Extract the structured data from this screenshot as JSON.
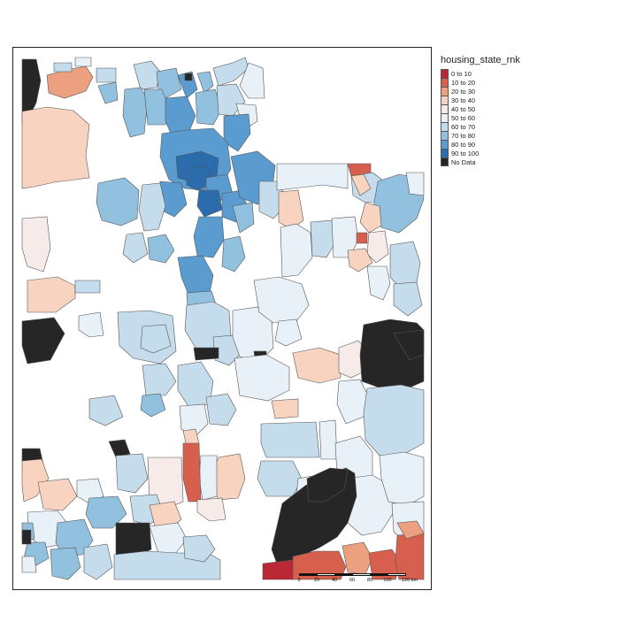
{
  "legend": {
    "title": "housing_state_rnk",
    "items": [
      {
        "label": "0 to 10",
        "color": "#ba2735"
      },
      {
        "label": "10 to 20",
        "color": "#d6604d"
      },
      {
        "label": "20 to 30",
        "color": "#eda080"
      },
      {
        "label": "30 to 40",
        "color": "#f8d4c0"
      },
      {
        "label": "40 to 50",
        "color": "#f6ebe8"
      },
      {
        "label": "50 to 60",
        "color": "#e8f1f7"
      },
      {
        "label": "60 to 70",
        "color": "#c5dcec"
      },
      {
        "label": "70 to 80",
        "color": "#92c0df"
      },
      {
        "label": "80 to 90",
        "color": "#5a9bd0"
      },
      {
        "label": "90 to 100",
        "color": "#2b6cad"
      },
      {
        "label": "No Data",
        "color": "#262626"
      }
    ]
  },
  "scale_bar": {
    "ticks": [
      "0",
      "20",
      "40",
      "60",
      "80",
      "100",
      "120 km"
    ]
  }
}
